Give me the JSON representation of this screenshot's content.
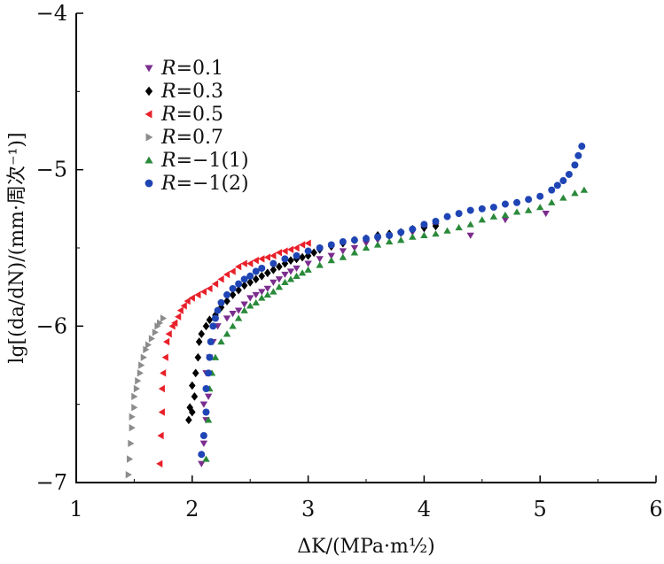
{
  "chart_data": {
    "type": "scatter",
    "xlabel": "ΔK/(MPa·m½)",
    "ylabel": "lg[(da/dN)/(mm·周次⁻¹)]",
    "xlim": [
      1,
      6
    ],
    "ylim": [
      -7,
      -4
    ],
    "x_ticks": [
      1,
      2,
      3,
      4,
      5,
      6
    ],
    "y_ticks": [
      -4,
      -5,
      -6,
      -7
    ],
    "grid": false,
    "legend_position": "top-left",
    "series": [
      {
        "name": "R=0.1",
        "marker": "triangle-down",
        "color": "#7b2d8e",
        "points": [
          [
            2.08,
            -6.88
          ],
          [
            2.1,
            -6.75
          ],
          [
            2.12,
            -6.6
          ],
          [
            2.1,
            -6.5
          ],
          [
            2.14,
            -6.45
          ],
          [
            2.12,
            -6.3
          ],
          [
            2.15,
            -6.2
          ],
          [
            2.18,
            -6.1
          ],
          [
            2.22,
            -6.0
          ],
          [
            2.3,
            -5.95
          ],
          [
            2.35,
            -5.92
          ],
          [
            2.4,
            -5.9
          ],
          [
            2.45,
            -5.86
          ],
          [
            2.5,
            -5.82
          ],
          [
            2.55,
            -5.8
          ],
          [
            2.6,
            -5.78
          ],
          [
            2.65,
            -5.76
          ],
          [
            2.7,
            -5.72
          ],
          [
            2.75,
            -5.7
          ],
          [
            2.8,
            -5.67
          ],
          [
            2.85,
            -5.65
          ],
          [
            2.9,
            -5.63
          ],
          [
            3.0,
            -5.6
          ],
          [
            3.1,
            -5.57
          ],
          [
            3.2,
            -5.55
          ],
          [
            3.3,
            -5.52
          ],
          [
            3.4,
            -5.5
          ],
          [
            3.5,
            -5.47
          ],
          [
            3.6,
            -5.45
          ],
          [
            3.7,
            -5.43
          ],
          [
            3.8,
            -5.41
          ],
          [
            3.9,
            -5.4
          ],
          [
            4.0,
            -5.38
          ],
          [
            4.1,
            -5.36
          ],
          [
            4.4,
            -5.42
          ],
          [
            4.7,
            -5.32
          ],
          [
            5.05,
            -5.28
          ]
        ]
      },
      {
        "name": "R=0.3",
        "marker": "diamond",
        "color": "#000000",
        "points": [
          [
            1.97,
            -6.6
          ],
          [
            1.98,
            -6.52
          ],
          [
            2.0,
            -6.55
          ],
          [
            2.02,
            -6.45
          ],
          [
            2.0,
            -6.38
          ],
          [
            2.03,
            -6.3
          ],
          [
            2.05,
            -6.2
          ],
          [
            2.06,
            -6.1
          ],
          [
            2.08,
            -6.05
          ],
          [
            2.12,
            -6.0
          ],
          [
            2.15,
            -5.96
          ],
          [
            2.2,
            -5.93
          ],
          [
            2.25,
            -5.88
          ],
          [
            2.3,
            -5.84
          ],
          [
            2.35,
            -5.8
          ],
          [
            2.4,
            -5.77
          ],
          [
            2.45,
            -5.74
          ],
          [
            2.5,
            -5.72
          ],
          [
            2.55,
            -5.7
          ],
          [
            2.6,
            -5.68
          ],
          [
            2.65,
            -5.66
          ],
          [
            2.7,
            -5.64
          ],
          [
            2.75,
            -5.62
          ],
          [
            2.8,
            -5.6
          ],
          [
            2.85,
            -5.58
          ],
          [
            2.9,
            -5.57
          ],
          [
            2.95,
            -5.56
          ],
          [
            3.0,
            -5.55
          ],
          [
            3.05,
            -5.53
          ],
          [
            3.1,
            -5.51
          ],
          [
            3.2,
            -5.49
          ],
          [
            3.3,
            -5.47
          ],
          [
            3.4,
            -5.45
          ],
          [
            3.5,
            -5.44
          ],
          [
            3.6,
            -5.42
          ],
          [
            3.7,
            -5.41
          ],
          [
            3.8,
            -5.4
          ],
          [
            3.9,
            -5.38
          ],
          [
            4.0,
            -5.37
          ],
          [
            4.1,
            -5.36
          ]
        ]
      },
      {
        "name": "R=0.5",
        "marker": "triangle-left",
        "color": "#e8202a",
        "points": [
          [
            1.72,
            -6.88
          ],
          [
            1.73,
            -6.7
          ],
          [
            1.74,
            -6.55
          ],
          [
            1.74,
            -6.4
          ],
          [
            1.75,
            -6.3
          ],
          [
            1.77,
            -6.2
          ],
          [
            1.78,
            -6.1
          ],
          [
            1.8,
            -6.05
          ],
          [
            1.83,
            -6.0
          ],
          [
            1.85,
            -5.98
          ],
          [
            1.88,
            -5.94
          ],
          [
            1.9,
            -5.9
          ],
          [
            1.93,
            -5.87
          ],
          [
            1.96,
            -5.84
          ],
          [
            2.0,
            -5.82
          ],
          [
            2.05,
            -5.8
          ],
          [
            2.1,
            -5.78
          ],
          [
            2.15,
            -5.76
          ],
          [
            2.2,
            -5.73
          ],
          [
            2.25,
            -5.7
          ],
          [
            2.3,
            -5.67
          ],
          [
            2.35,
            -5.65
          ],
          [
            2.4,
            -5.62
          ],
          [
            2.45,
            -5.6
          ],
          [
            2.5,
            -5.6
          ],
          [
            2.55,
            -5.58
          ],
          [
            2.6,
            -5.57
          ],
          [
            2.65,
            -5.56
          ],
          [
            2.7,
            -5.55
          ],
          [
            2.75,
            -5.53
          ],
          [
            2.8,
            -5.52
          ],
          [
            2.85,
            -5.51
          ],
          [
            2.9,
            -5.5
          ],
          [
            2.95,
            -5.48
          ],
          [
            3.0,
            -5.47
          ]
        ]
      },
      {
        "name": "R=0.7",
        "marker": "triangle-right",
        "color": "#8c8c8c",
        "points": [
          [
            1.45,
            -6.95
          ],
          [
            1.46,
            -6.85
          ],
          [
            1.47,
            -6.75
          ],
          [
            1.48,
            -6.65
          ],
          [
            1.48,
            -6.58
          ],
          [
            1.5,
            -6.52
          ],
          [
            1.5,
            -6.45
          ],
          [
            1.52,
            -6.4
          ],
          [
            1.53,
            -6.35
          ],
          [
            1.55,
            -6.3
          ],
          [
            1.56,
            -6.25
          ],
          [
            1.58,
            -6.2
          ],
          [
            1.6,
            -6.15
          ],
          [
            1.62,
            -6.12
          ],
          [
            1.65,
            -6.08
          ],
          [
            1.68,
            -6.04
          ],
          [
            1.7,
            -6.0
          ],
          [
            1.72,
            -5.98
          ],
          [
            1.75,
            -5.95
          ]
        ]
      },
      {
        "name": "R=−1(1)",
        "marker": "triangle-up",
        "color": "#2a8a3a",
        "points": [
          [
            2.12,
            -6.85
          ],
          [
            2.14,
            -6.6
          ],
          [
            2.15,
            -6.4
          ],
          [
            2.17,
            -6.3
          ],
          [
            2.2,
            -6.2
          ],
          [
            2.25,
            -6.1
          ],
          [
            2.3,
            -6.05
          ],
          [
            2.35,
            -6.0
          ],
          [
            2.4,
            -5.95
          ],
          [
            2.45,
            -5.9
          ],
          [
            2.5,
            -5.87
          ],
          [
            2.55,
            -5.85
          ],
          [
            2.6,
            -5.82
          ],
          [
            2.65,
            -5.8
          ],
          [
            2.7,
            -5.78
          ],
          [
            2.75,
            -5.75
          ],
          [
            2.8,
            -5.72
          ],
          [
            2.85,
            -5.7
          ],
          [
            2.9,
            -5.68
          ],
          [
            2.95,
            -5.66
          ],
          [
            3.0,
            -5.64
          ],
          [
            3.1,
            -5.61
          ],
          [
            3.2,
            -5.58
          ],
          [
            3.3,
            -5.56
          ],
          [
            3.4,
            -5.53
          ],
          [
            3.5,
            -5.5
          ],
          [
            3.6,
            -5.48
          ],
          [
            3.7,
            -5.46
          ],
          [
            3.8,
            -5.45
          ],
          [
            3.9,
            -5.43
          ],
          [
            4.0,
            -5.42
          ],
          [
            4.1,
            -5.41
          ],
          [
            4.2,
            -5.39
          ],
          [
            4.3,
            -5.37
          ],
          [
            4.4,
            -5.35
          ],
          [
            4.5,
            -5.32
          ],
          [
            4.6,
            -5.3
          ],
          [
            4.7,
            -5.29
          ],
          [
            4.8,
            -5.27
          ],
          [
            4.9,
            -5.26
          ],
          [
            5.0,
            -5.24
          ],
          [
            5.1,
            -5.21
          ],
          [
            5.2,
            -5.18
          ],
          [
            5.3,
            -5.15
          ],
          [
            5.38,
            -5.13
          ]
        ]
      },
      {
        "name": "R=−1(2)",
        "marker": "circle",
        "color": "#1f45b5",
        "points": [
          [
            2.08,
            -6.82
          ],
          [
            2.1,
            -6.7
          ],
          [
            2.12,
            -6.55
          ],
          [
            2.12,
            -6.4
          ],
          [
            2.14,
            -6.3
          ],
          [
            2.15,
            -6.2
          ],
          [
            2.16,
            -6.1
          ],
          [
            2.18,
            -6.0
          ],
          [
            2.2,
            -5.95
          ],
          [
            2.22,
            -5.9
          ],
          [
            2.25,
            -5.85
          ],
          [
            2.3,
            -5.8
          ],
          [
            2.35,
            -5.76
          ],
          [
            2.4,
            -5.73
          ],
          [
            2.45,
            -5.7
          ],
          [
            2.5,
            -5.68
          ],
          [
            2.55,
            -5.65
          ],
          [
            2.6,
            -5.63
          ],
          [
            2.7,
            -5.6
          ],
          [
            2.8,
            -5.57
          ],
          [
            2.9,
            -5.55
          ],
          [
            3.0,
            -5.52
          ],
          [
            3.1,
            -5.5
          ],
          [
            3.2,
            -5.48
          ],
          [
            3.3,
            -5.46
          ],
          [
            3.4,
            -5.45
          ],
          [
            3.5,
            -5.44
          ],
          [
            3.6,
            -5.43
          ],
          [
            3.7,
            -5.42
          ],
          [
            3.8,
            -5.4
          ],
          [
            3.9,
            -5.38
          ],
          [
            4.0,
            -5.35
          ],
          [
            4.1,
            -5.33
          ],
          [
            4.2,
            -5.3
          ],
          [
            4.3,
            -5.28
          ],
          [
            4.4,
            -5.26
          ],
          [
            4.5,
            -5.25
          ],
          [
            4.6,
            -5.24
          ],
          [
            4.7,
            -5.22
          ],
          [
            4.8,
            -5.21
          ],
          [
            4.9,
            -5.19
          ],
          [
            5.0,
            -5.17
          ],
          [
            5.1,
            -5.13
          ],
          [
            5.15,
            -5.1
          ],
          [
            5.2,
            -5.07
          ],
          [
            5.25,
            -5.03
          ],
          [
            5.3,
            -4.97
          ],
          [
            5.33,
            -4.91
          ],
          [
            5.36,
            -4.85
          ]
        ]
      }
    ]
  }
}
